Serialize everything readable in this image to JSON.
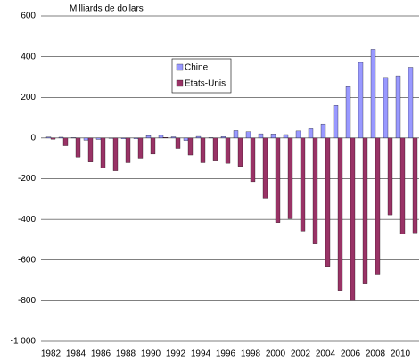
{
  "chart_data": {
    "type": "bar",
    "title": "Milliards de dollars",
    "categories": [
      "1982",
      null,
      "1984",
      null,
      "1986",
      null,
      "1988",
      null,
      "1990",
      null,
      "1992",
      null,
      "1994",
      null,
      "1996",
      null,
      "1998",
      null,
      "2000",
      null,
      "2002",
      null,
      "2004",
      null,
      "2006",
      null,
      "2008",
      null,
      "2010",
      null
    ],
    "series": [
      {
        "name": "Chine",
        "color": "#9999ff",
        "values": [
          5,
          4,
          2,
          -11,
          -7,
          0,
          -4,
          -4,
          12,
          13,
          6,
          -12,
          8,
          2,
          7,
          37,
          31,
          21,
          20,
          17,
          35,
          46,
          69,
          161,
          253,
          372,
          436,
          298,
          306,
          348
        ]
      },
      {
        "name": "Etats-Unis",
        "color": "#993366",
        "values": [
          -6,
          -38,
          -94,
          -118,
          -147,
          -161,
          -121,
          -99,
          -79,
          3,
          -51,
          -84,
          -121,
          -113,
          -124,
          -140,
          -215,
          -296,
          -416,
          -397,
          -458,
          -521,
          -631,
          -749,
          -800,
          -718,
          -669,
          -378,
          -471,
          -466
        ]
      }
    ],
    "ylim": [
      -1000,
      600
    ],
    "yticks": [
      {
        "value": -1000,
        "label": "-1 000"
      },
      -800,
      -600,
      -400,
      -200,
      0,
      200,
      400,
      600
    ],
    "grid": true
  }
}
